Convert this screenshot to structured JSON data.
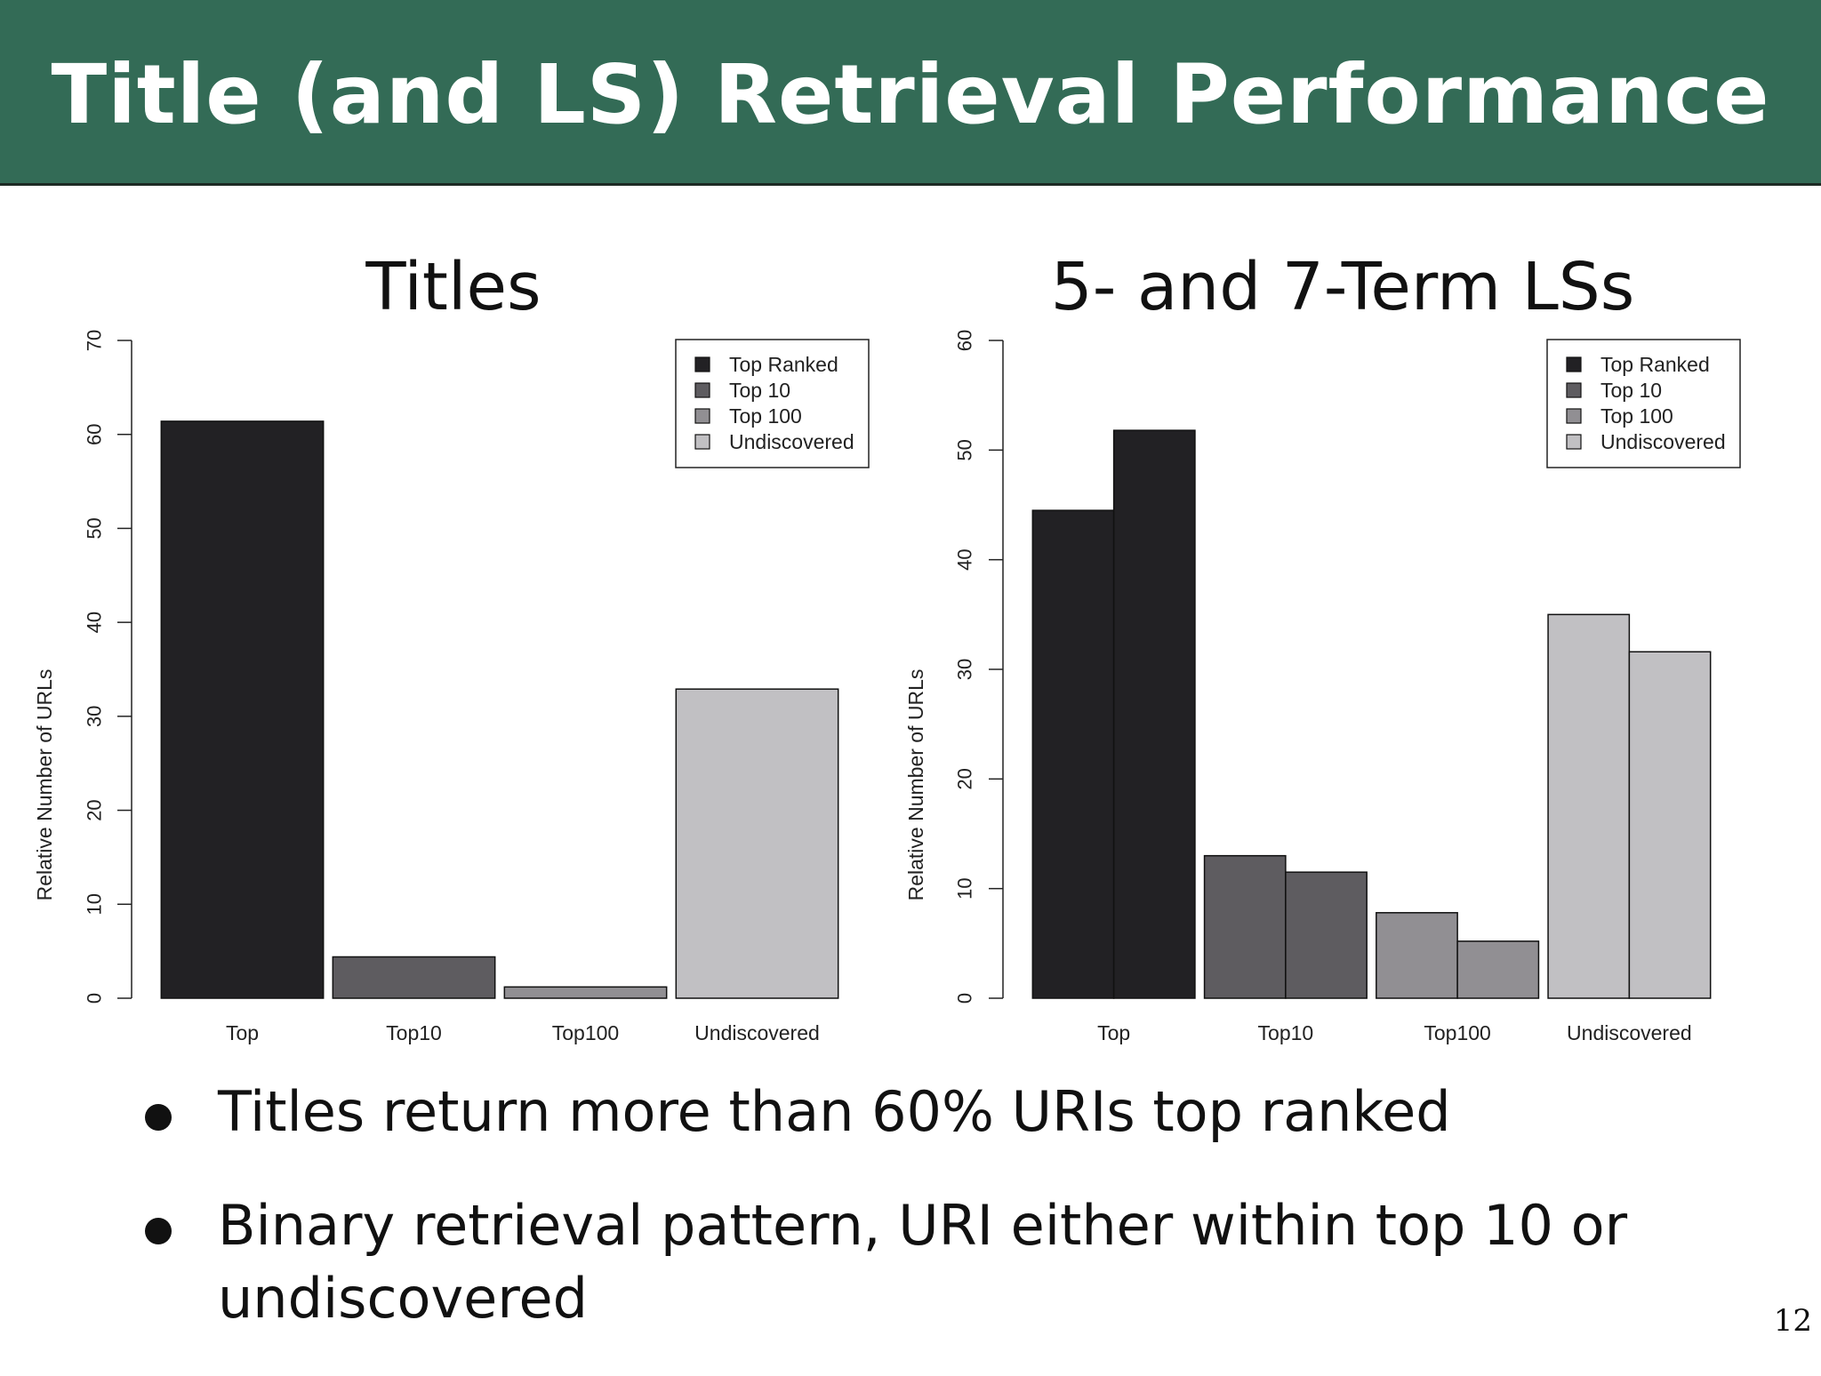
{
  "slide": {
    "title": "Title (and LS) Retrieval Performance",
    "bullets": [
      "Titles return more than 60% URIs top ranked",
      "Binary retrieval pattern, URI either within top 10 or undiscovered"
    ],
    "page_number": "12"
  },
  "chart_data": [
    {
      "type": "bar",
      "title": "Titles",
      "xlabel": "",
      "ylabel": "Relative Number of URLs",
      "categories": [
        "Top",
        "Top10",
        "Top100",
        "Undiscovered"
      ],
      "series": [
        {
          "values": [
            61.4,
            4.4,
            1.2,
            32.9
          ]
        }
      ],
      "bar_colors": [
        "#222124",
        "#5e5c60",
        "#918f93",
        "#c1c0c3"
      ],
      "ylim": [
        0,
        70
      ],
      "yticks": [
        0,
        10,
        20,
        30,
        40,
        50,
        60,
        70
      ],
      "legend": {
        "placement": "top-right",
        "entries": [
          "Top Ranked",
          "Top 10",
          "Top 100",
          "Undiscovered"
        ],
        "colors": [
          "#222124",
          "#5e5c60",
          "#918f93",
          "#c1c0c3"
        ]
      },
      "grid": false
    },
    {
      "type": "bar",
      "title": "5- and 7-Term LSs",
      "xlabel": "",
      "ylabel": "Relative Number of URLs",
      "categories": [
        "Top",
        "Top10",
        "Top100",
        "Undiscovered"
      ],
      "series": [
        {
          "values": [
            44.5,
            13.0,
            7.8,
            35.0
          ]
        },
        {
          "values": [
            51.8,
            11.5,
            5.2,
            31.6
          ]
        }
      ],
      "bar_colors": [
        "#222124",
        "#5e5c60",
        "#918f93",
        "#c1c0c3"
      ],
      "ylim": [
        0,
        60
      ],
      "yticks": [
        0,
        10,
        20,
        30,
        40,
        50,
        60
      ],
      "legend": {
        "placement": "top-right",
        "entries": [
          "Top Ranked",
          "Top 10",
          "Top 100",
          "Undiscovered"
        ],
        "colors": [
          "#222124",
          "#5e5c60",
          "#918f93",
          "#c1c0c3"
        ]
      },
      "grid": false
    }
  ]
}
